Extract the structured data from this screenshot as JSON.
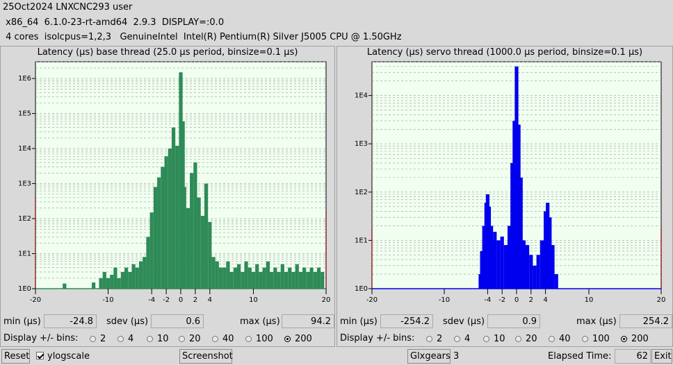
{
  "header": {
    "line1": "25Oct2024 LNXCNC293 user",
    "line2": " x86_64  6.1.0-23-rt-amd64  2.9.3  DISPLAY=:0.0",
    "line3": " 4 cores  isolcpus=1,2,3   GenuineIntel  Intel(R) Pentium(R) Silver J5005 CPU @ 1.50GHz"
  },
  "base": {
    "title": "Latency (µs) base thread (25.0 µs period, binsize=0.1 µs)",
    "min_label": "min (µs)",
    "min": "-24.8",
    "sdev_label": "sdev (µs)",
    "sdev": "0.6",
    "max_label": "max (µs)",
    "max": "94.2",
    "bins_label": "Display +/- bins:",
    "bins_options": [
      "2",
      "4",
      "10",
      "20",
      "40",
      "100",
      "200"
    ],
    "bins_selected": "200"
  },
  "servo": {
    "title": "Latency (µs) servo thread (1000.0 µs period, binsize=0.1 µs)",
    "min_label": "min (µs)",
    "min": "-254.2",
    "sdev_label": "sdev (µs)",
    "sdev": "0.9",
    "max_label": "max (µs)",
    "max": "254.2",
    "bins_label": "Display +/- bins:",
    "bins_options": [
      "2",
      "4",
      "10",
      "20",
      "40",
      "100",
      "200"
    ],
    "bins_selected": "200"
  },
  "bottom": {
    "reset": "Reset",
    "ylogscale": "ylogscale",
    "ylogscale_checked": true,
    "screenshot": "Screenshot",
    "glxgears": "Glxgears",
    "glxgears_count": "3",
    "elapsed_label": "Elapsed Time:",
    "elapsed": "62",
    "exit": "Exit"
  },
  "chart_data": [
    {
      "type": "bar",
      "title": "Latency (µs) base thread (25.0 µs period, binsize=0.1 µs)",
      "xlim": [
        -20,
        20
      ],
      "yscale": "log",
      "ylim": [
        1,
        3000000
      ],
      "xticks": [
        "-20",
        "-10",
        "-4",
        "-2",
        "0",
        "2",
        "4",
        "10",
        "20"
      ],
      "yticks": [
        "1E0",
        "1E1",
        "1E2",
        "1E3",
        "1E4",
        "1E5",
        "1E6"
      ],
      "color": "#2e8b57",
      "overflow_color": "#cc0000",
      "overflow": {
        "below": 400,
        "above": 150
      },
      "grid": true,
      "points": [
        [
          -16,
          1.4
        ],
        [
          -12,
          1.5
        ],
        [
          -11,
          2
        ],
        [
          -10.5,
          3
        ],
        [
          -10,
          2
        ],
        [
          -9.5,
          2.5
        ],
        [
          -9,
          4
        ],
        [
          -8.5,
          2
        ],
        [
          -8,
          3
        ],
        [
          -7.5,
          4
        ],
        [
          -7,
          3
        ],
        [
          -6.5,
          5
        ],
        [
          -6,
          4
        ],
        [
          -5.5,
          6
        ],
        [
          -5,
          8
        ],
        [
          -4.5,
          30
        ],
        [
          -4,
          150
        ],
        [
          -3.5,
          800
        ],
        [
          -3,
          1500
        ],
        [
          -2.5,
          3000
        ],
        [
          -2,
          6000
        ],
        [
          -1.5,
          10000
        ],
        [
          -1,
          40000
        ],
        [
          -0.5,
          12000
        ],
        [
          0,
          1500000
        ],
        [
          0.3,
          60000
        ],
        [
          0.5,
          800
        ],
        [
          1,
          200
        ],
        [
          1.5,
          2000
        ],
        [
          2,
          4000
        ],
        [
          2.5,
          400
        ],
        [
          3,
          120
        ],
        [
          3.5,
          1000
        ],
        [
          4,
          80
        ],
        [
          4.5,
          8
        ],
        [
          5,
          6
        ],
        [
          5.5,
          4
        ],
        [
          6,
          4
        ],
        [
          6.5,
          6
        ],
        [
          7,
          3
        ],
        [
          7.5,
          4
        ],
        [
          8,
          5
        ],
        [
          8.5,
          3
        ],
        [
          9,
          6
        ],
        [
          9.5,
          4
        ],
        [
          10,
          3
        ],
        [
          10.5,
          5
        ],
        [
          11,
          3
        ],
        [
          11.5,
          4
        ],
        [
          12,
          6
        ],
        [
          12.5,
          3
        ],
        [
          13,
          4
        ],
        [
          13.5,
          3
        ],
        [
          14,
          5
        ],
        [
          14.5,
          3
        ],
        [
          15,
          4
        ],
        [
          15.5,
          3
        ],
        [
          16,
          5
        ],
        [
          16.5,
          3
        ],
        [
          17,
          4
        ],
        [
          17.5,
          3
        ],
        [
          18,
          4
        ],
        [
          18.5,
          3
        ],
        [
          19,
          4
        ],
        [
          19.5,
          3
        ]
      ]
    },
    {
      "type": "bar",
      "title": "Latency (µs) servo thread (1000.0 µs period, binsize=0.1 µs)",
      "xlim": [
        -20,
        20
      ],
      "yscale": "log",
      "ylim": [
        1,
        50000
      ],
      "xticks": [
        "-20",
        "-10",
        "-4",
        "-2",
        "0",
        "2",
        "4",
        "10",
        "20"
      ],
      "yticks": [
        "1E0",
        "1E1",
        "1E2",
        "1E3",
        "1E4"
      ],
      "color": "#0000ee",
      "overflow_color": "#cc0000",
      "overflow": {
        "below": 17,
        "above": 17
      },
      "grid": true,
      "points": [
        [
          -18,
          1
        ],
        [
          -12,
          1
        ],
        [
          -10,
          1
        ],
        [
          -7.5,
          1
        ],
        [
          -7,
          1
        ],
        [
          -5.5,
          1
        ],
        [
          -5,
          2
        ],
        [
          -4.8,
          6
        ],
        [
          -4.5,
          20
        ],
        [
          -4.2,
          60
        ],
        [
          -4,
          90
        ],
        [
          -3.8,
          50
        ],
        [
          -3.5,
          20
        ],
        [
          -3.2,
          10
        ],
        [
          -3,
          15
        ],
        [
          -2.5,
          10
        ],
        [
          -2,
          12
        ],
        [
          -1.5,
          8
        ],
        [
          -1,
          20
        ],
        [
          -0.6,
          400
        ],
        [
          -0.3,
          3000
        ],
        [
          0,
          40000
        ],
        [
          0.3,
          2500
        ],
        [
          0.6,
          200
        ],
        [
          1,
          10
        ],
        [
          1.5,
          8
        ],
        [
          2,
          5
        ],
        [
          2.5,
          3
        ],
        [
          3,
          5
        ],
        [
          3.5,
          10
        ],
        [
          4,
          40
        ],
        [
          4.3,
          60
        ],
        [
          4.6,
          30
        ],
        [
          5,
          8
        ],
        [
          5.5,
          2
        ],
        [
          6,
          1
        ],
        [
          7,
          1
        ],
        [
          7.5,
          1
        ],
        [
          8,
          1
        ]
      ]
    }
  ]
}
